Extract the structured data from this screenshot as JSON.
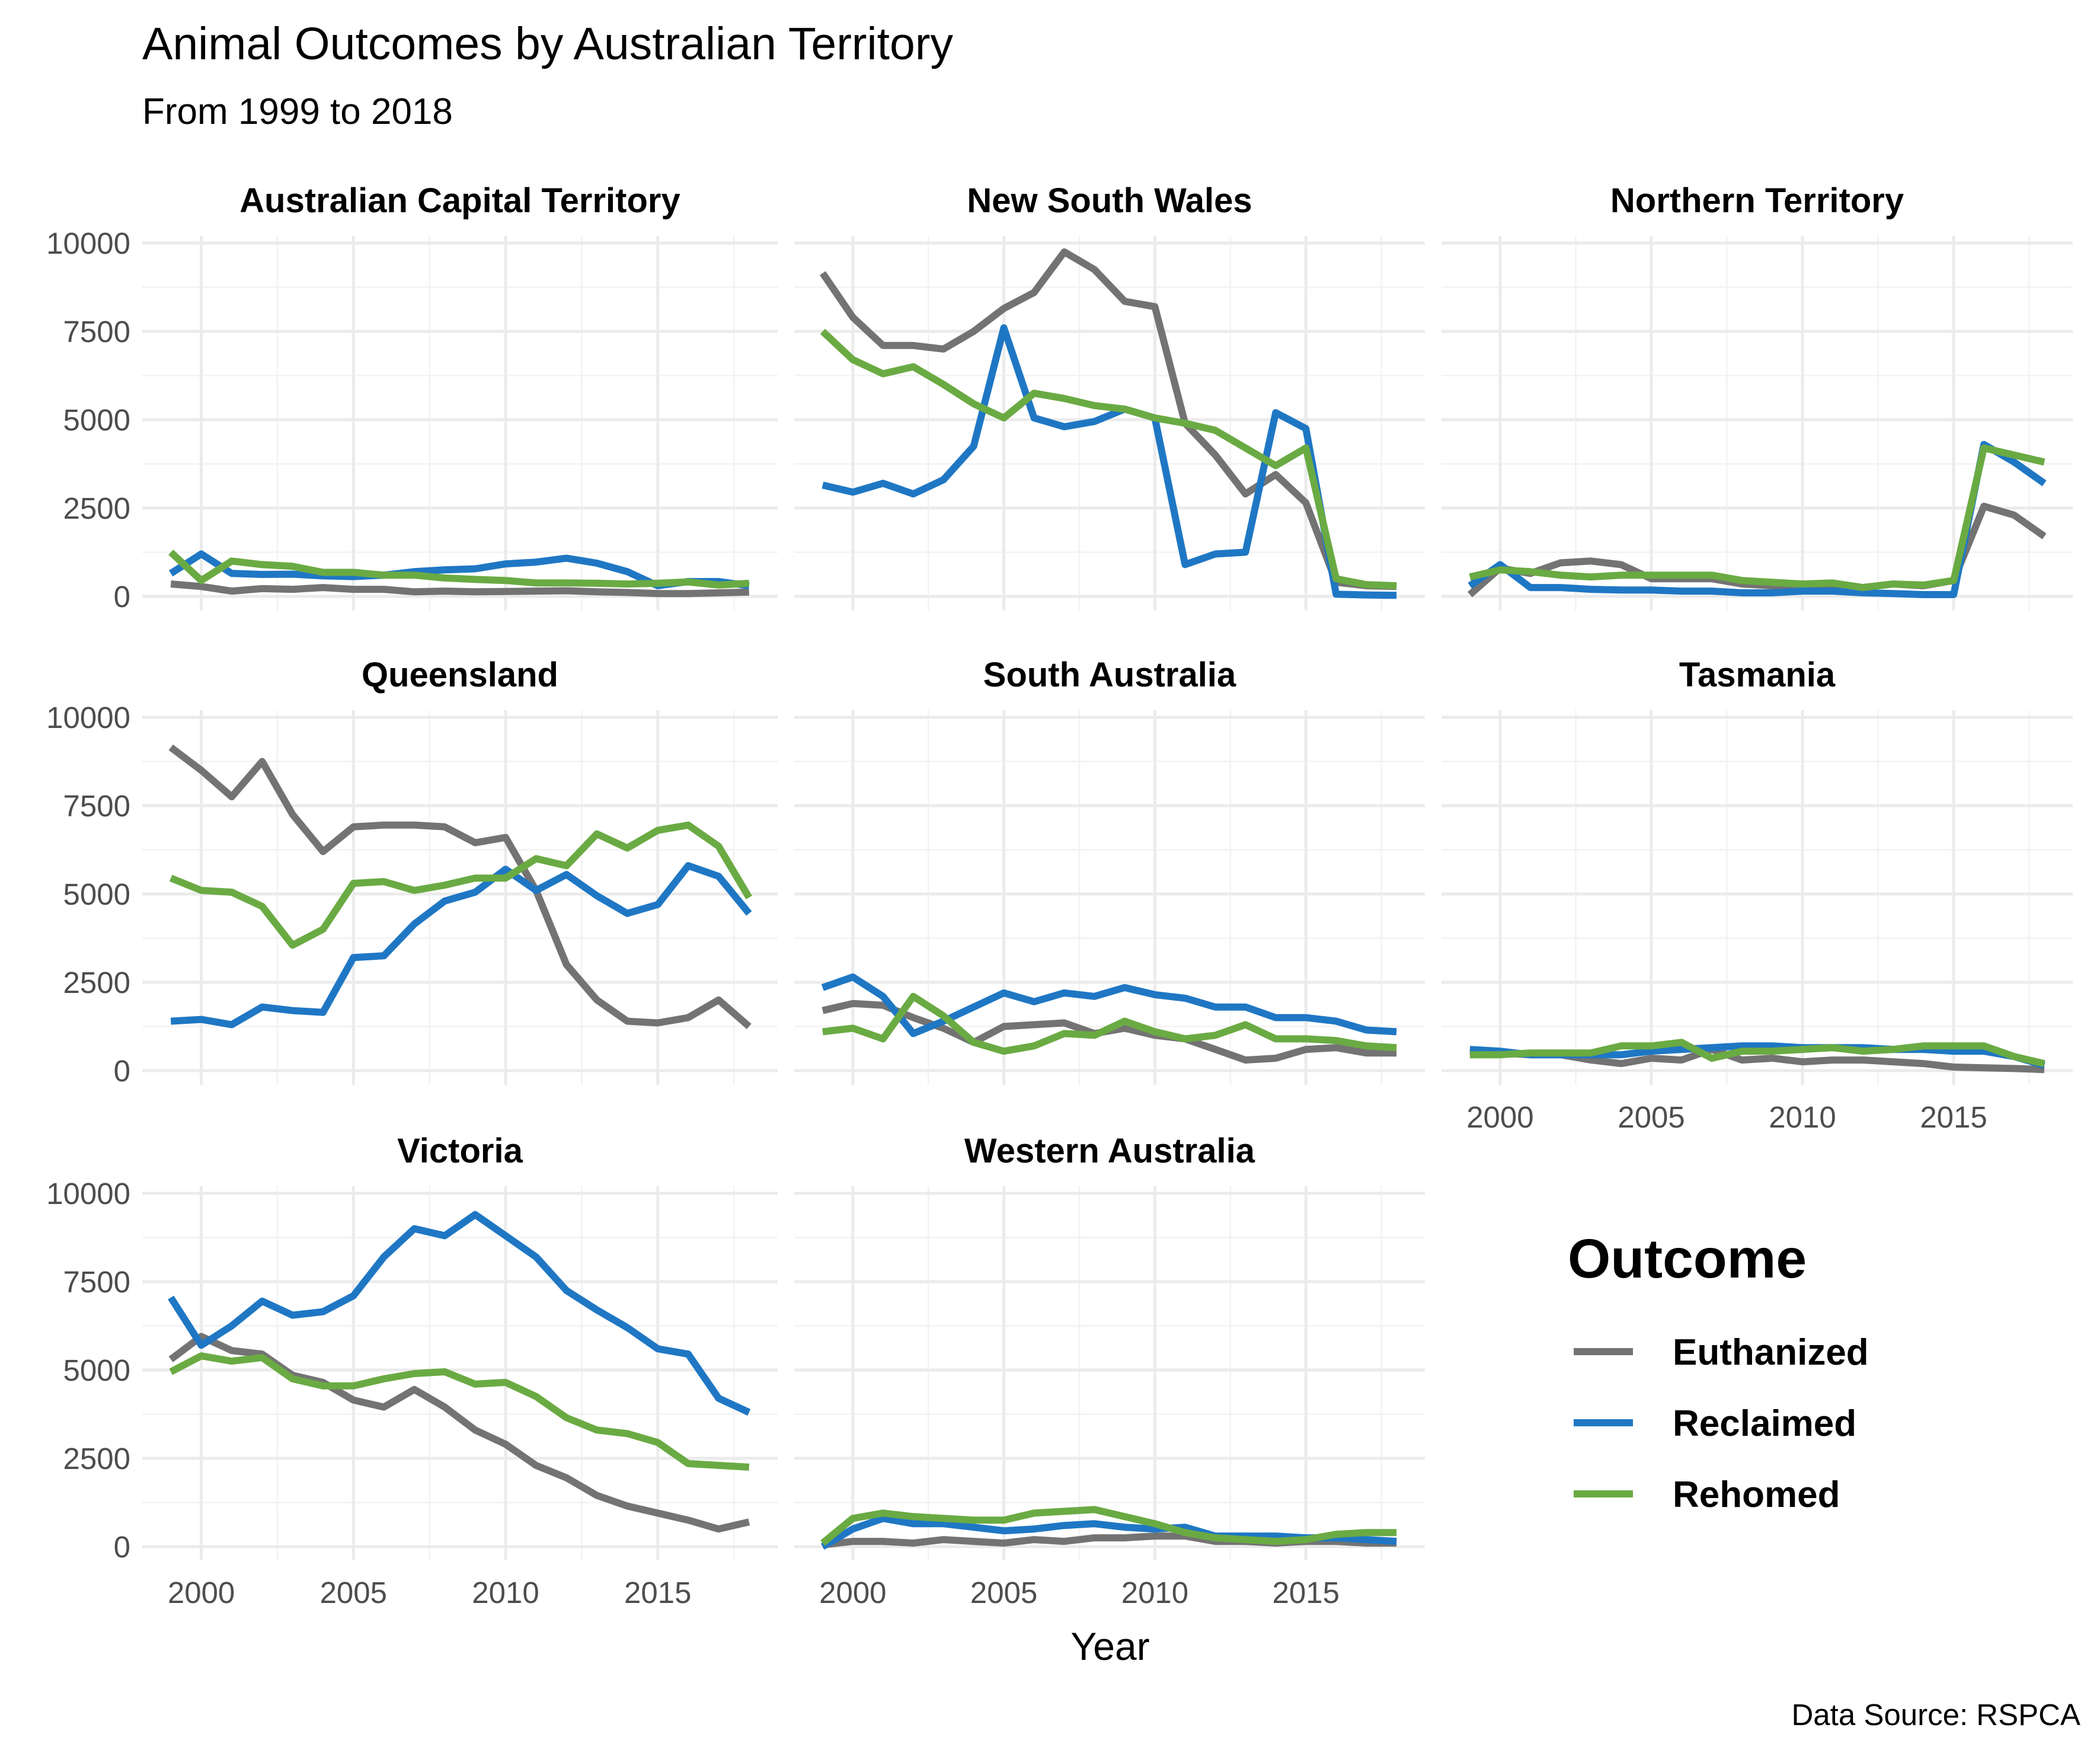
{
  "title": "Animal Outcomes by Australian Territory",
  "subtitle": "From 1999 to 2018",
  "caption": "Data Source: RSPCA",
  "chart_data": {
    "type": "line",
    "facet": "territory",
    "xlabel": "Year",
    "ylabel": "",
    "xlim": [
      1999,
      2018
    ],
    "ylim": [
      0,
      10000
    ],
    "x_ticks": [
      2000,
      2005,
      2010,
      2015
    ],
    "y_ticks": [
      0,
      2500,
      5000,
      7500,
      10000
    ],
    "grid": true,
    "legend": {
      "title": "Outcome",
      "placement": "right"
    },
    "series_colors": {
      "Euthanized": "#737373",
      "Reclaimed": "#1f77c4",
      "Rehomed": "#6aaa43"
    },
    "x": [
      1999,
      2000,
      2001,
      2002,
      2003,
      2004,
      2005,
      2006,
      2007,
      2008,
      2009,
      2010,
      2011,
      2012,
      2013,
      2014,
      2015,
      2016,
      2017,
      2018
    ],
    "panels": [
      {
        "name": "Australian Capital Territory",
        "series": [
          {
            "name": "Euthanized",
            "values": [
              350,
              280,
              150,
              220,
              200,
              250,
              200,
              200,
              130,
              150,
              130,
              140,
              150,
              160,
              130,
              110,
              80,
              80,
              100,
              120
            ]
          },
          {
            "name": "Reclaimed",
            "values": [
              650,
              1200,
              650,
              620,
              630,
              580,
              560,
              600,
              700,
              750,
              780,
              920,
              970,
              1080,
              940,
              700,
              300,
              420,
              420,
              300
            ]
          },
          {
            "name": "Rehomed",
            "values": [
              1250,
              450,
              1000,
              900,
              850,
              680,
              680,
              600,
              600,
              520,
              480,
              450,
              380,
              380,
              370,
              350,
              370,
              410,
              320,
              370
            ]
          }
        ]
      },
      {
        "name": "New South Wales",
        "series": [
          {
            "name": "Euthanized",
            "values": [
              9150,
              7900,
              7100,
              7100,
              7000,
              7500,
              8150,
              8600,
              9750,
              9250,
              8350,
              8200,
              4900,
              4000,
              2900,
              3450,
              2650,
              400,
              300,
              280
            ]
          },
          {
            "name": "Reclaimed",
            "values": [
              3150,
              2950,
              3200,
              2900,
              3300,
              4250,
              7600,
              5050,
              4800,
              4950,
              5300,
              5050,
              900,
              1200,
              1250,
              5200,
              4750,
              60,
              40,
              30
            ]
          },
          {
            "name": "Rehomed",
            "values": [
              7500,
              6700,
              6300,
              6500,
              6000,
              5450,
              5050,
              5750,
              5600,
              5400,
              5300,
              5050,
              4900,
              4700,
              4200,
              3700,
              4200,
              500,
              330,
              300
            ]
          }
        ]
      },
      {
        "name": "Northern Territory",
        "series": [
          {
            "name": "Euthanized",
            "values": [
              50,
              800,
              650,
              950,
              1000,
              900,
              500,
              500,
              500,
              350,
              300,
              300,
              300,
              250,
              350,
              300,
              450,
              2550,
              2300,
              1700
            ]
          },
          {
            "name": "Reclaimed",
            "values": [
              300,
              900,
              250,
              250,
              200,
              180,
              180,
              150,
              150,
              100,
              100,
              150,
              150,
              100,
              80,
              50,
              50,
              4300,
              3800,
              3200
            ]
          },
          {
            "name": "Rehomed",
            "values": [
              550,
              750,
              700,
              600,
              550,
              600,
              600,
              600,
              600,
              450,
              400,
              350,
              380,
              250,
              350,
              320,
              450,
              4200,
              4000,
              3800
            ]
          }
        ]
      },
      {
        "name": "Queensland",
        "series": [
          {
            "name": "Euthanized",
            "values": [
              9150,
              8500,
              7750,
              8750,
              7250,
              6200,
              6900,
              6950,
              6950,
              6900,
              6450,
              6600,
              5100,
              3000,
              2000,
              1400,
              1350,
              1500,
              2000,
              1250
            ]
          },
          {
            "name": "Reclaimed",
            "values": [
              1400,
              1450,
              1300,
              1800,
              1700,
              1650,
              3200,
              3250,
              4150,
              4800,
              5050,
              5700,
              5100,
              5550,
              4950,
              4450,
              4700,
              5800,
              5500,
              4450
            ]
          },
          {
            "name": "Rehomed",
            "values": [
              5450,
              5100,
              5050,
              4650,
              3550,
              4000,
              5300,
              5350,
              5100,
              5250,
              5450,
              5450,
              6000,
              5800,
              6700,
              6300,
              6800,
              6950,
              6350,
              4900
            ]
          }
        ]
      },
      {
        "name": "South Australia",
        "series": [
          {
            "name": "Euthanized",
            "values": [
              1700,
              1900,
              1850,
              1500,
              1200,
              800,
              1250,
              1300,
              1350,
              1050,
              1200,
              1000,
              900,
              600,
              300,
              350,
              600,
              650,
              500,
              500
            ]
          },
          {
            "name": "Reclaimed",
            "values": [
              2350,
              2650,
              2100,
              1050,
              1400,
              1800,
              2200,
              1950,
              2200,
              2100,
              2350,
              2150,
              2050,
              1800,
              1800,
              1500,
              1500,
              1400,
              1150,
              1100
            ]
          },
          {
            "name": "Rehomed",
            "values": [
              1100,
              1200,
              900,
              2100,
              1550,
              800,
              550,
              700,
              1050,
              1000,
              1400,
              1100,
              900,
              1000,
              1300,
              900,
              900,
              850,
              700,
              650
            ]
          }
        ]
      },
      {
        "name": "Tasmania",
        "series": [
          {
            "name": "Euthanized",
            "values": [
              550,
              500,
              450,
              450,
              300,
              200,
              350,
              300,
              600,
              300,
              350,
              250,
              300,
              300,
              250,
              200,
              100,
              80,
              60,
              30
            ]
          },
          {
            "name": "Reclaimed",
            "values": [
              600,
              550,
              450,
              450,
              450,
              450,
              550,
              600,
              650,
              700,
              700,
              650,
              650,
              650,
              600,
              600,
              550,
              550,
              400,
              150
            ]
          },
          {
            "name": "Rehomed",
            "values": [
              450,
              450,
              500,
              500,
              500,
              700,
              700,
              800,
              350,
              550,
              550,
              600,
              650,
              550,
              600,
              700,
              700,
              700,
              400,
              200
            ]
          }
        ]
      },
      {
        "name": "Victoria",
        "series": [
          {
            "name": "Euthanized",
            "values": [
              5300,
              5950,
              5550,
              5450,
              4850,
              4650,
              4150,
              3950,
              4450,
              3950,
              3300,
              2900,
              2300,
              1950,
              1450,
              1150,
              950,
              750,
              500,
              700
            ]
          },
          {
            "name": "Reclaimed",
            "values": [
              7050,
              5700,
              6250,
              6950,
              6550,
              6650,
              7100,
              8200,
              9000,
              8800,
              9400,
              8800,
              8200,
              7250,
              6700,
              6200,
              5600,
              5450,
              4200,
              3800
            ]
          },
          {
            "name": "Rehomed",
            "values": [
              4950,
              5400,
              5250,
              5350,
              4750,
              4550,
              4550,
              4750,
              4900,
              4950,
              4600,
              4650,
              4250,
              3650,
              3300,
              3200,
              2950,
              2350,
              2300,
              2250
            ]
          }
        ]
      },
      {
        "name": "Western Australia",
        "series": [
          {
            "name": "Euthanized",
            "values": [
              50,
              150,
              150,
              100,
              200,
              150,
              100,
              200,
              150,
              250,
              250,
              300,
              300,
              150,
              150,
              100,
              150,
              150,
              100,
              100
            ]
          },
          {
            "name": "Reclaimed",
            "values": [
              0,
              500,
              800,
              650,
              650,
              550,
              450,
              500,
              600,
              650,
              550,
              500,
              550,
              300,
              300,
              300,
              250,
              250,
              200,
              150
            ]
          },
          {
            "name": "Rehomed",
            "values": [
              100,
              800,
              950,
              850,
              800,
              750,
              750,
              950,
              1000,
              1050,
              850,
              650,
              400,
              250,
              200,
              150,
              200,
              350,
              400,
              400
            ]
          }
        ]
      }
    ]
  }
}
